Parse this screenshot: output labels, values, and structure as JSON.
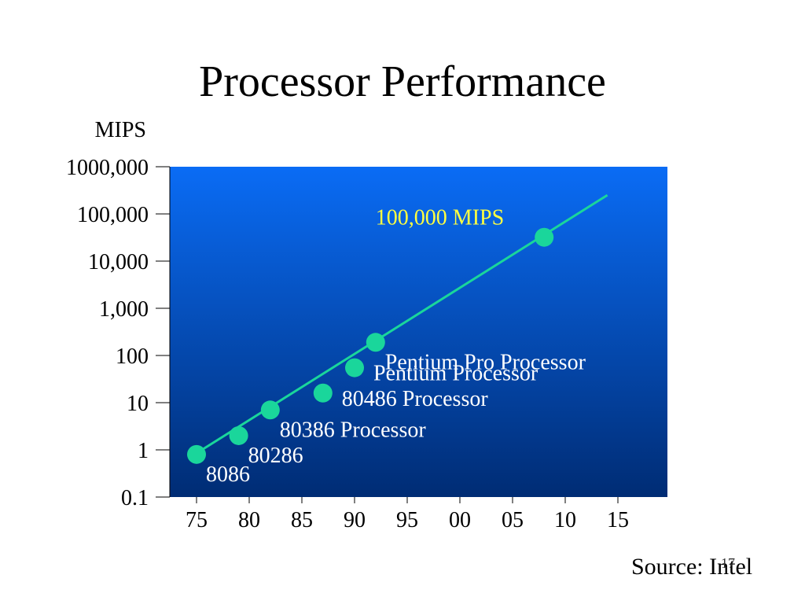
{
  "slide": {
    "title": "Processor Performance",
    "source": "Source: Intel",
    "number": "17"
  },
  "chart_data": {
    "type": "scatter",
    "title": "Processor Performance",
    "ylabel": "MIPS",
    "xlabel": "",
    "y_scale": "log",
    "ylim": [
      0.1,
      1000000
    ],
    "y_ticks": [
      {
        "value": 1000000,
        "label": "1000,000"
      },
      {
        "value": 100000,
        "label": "100,000"
      },
      {
        "value": 10000,
        "label": "10,000"
      },
      {
        "value": 1000,
        "label": "1,000"
      },
      {
        "value": 100,
        "label": "100"
      },
      {
        "value": 10,
        "label": "10"
      },
      {
        "value": 1,
        "label": "1"
      },
      {
        "value": 0.1,
        "label": "0.1"
      }
    ],
    "xlim": [
      1974,
      2017
    ],
    "x_ticks": [
      {
        "value": 1975,
        "label": "75"
      },
      {
        "value": 1980,
        "label": "80"
      },
      {
        "value": 1985,
        "label": "85"
      },
      {
        "value": 1990,
        "label": "90"
      },
      {
        "value": 1995,
        "label": "95"
      },
      {
        "value": 2000,
        "label": "00"
      },
      {
        "value": 2005,
        "label": "05"
      },
      {
        "value": 2010,
        "label": "10"
      },
      {
        "value": 2015,
        "label": "15"
      }
    ],
    "points": [
      {
        "label": "8086",
        "x": 1975,
        "y": 0.8,
        "label_pos": "below-right"
      },
      {
        "label": "80286",
        "x": 1979,
        "y": 2,
        "label_pos": "below-right"
      },
      {
        "label": "80386 Processor",
        "x": 1982,
        "y": 7,
        "label_pos": "below-right"
      },
      {
        "label": "80486 Processor",
        "x": 1987,
        "y": 16,
        "label_pos": "right"
      },
      {
        "label": "Pentium Processor",
        "x": 1990,
        "y": 55,
        "label_pos": "right"
      },
      {
        "label": "Pentium Pro Processor",
        "x": 1992,
        "y": 190,
        "label_pos": "below-right"
      },
      {
        "label": "",
        "x": 2008,
        "y": 32000
      }
    ],
    "trend": {
      "x": [
        1975,
        2014
      ],
      "y": [
        0.85,
        250000
      ]
    },
    "annotation": {
      "text": "100,000 MIPS",
      "x": 1992,
      "y": 60000,
      "color": "#ffff40"
    },
    "colors": {
      "marker": "#1ad69b",
      "trend": "#1ad69b",
      "plot_bg_top": "#0a6cf5",
      "plot_bg_bottom": "#002c74",
      "point_label": "#ffffff"
    },
    "grid": false
  }
}
